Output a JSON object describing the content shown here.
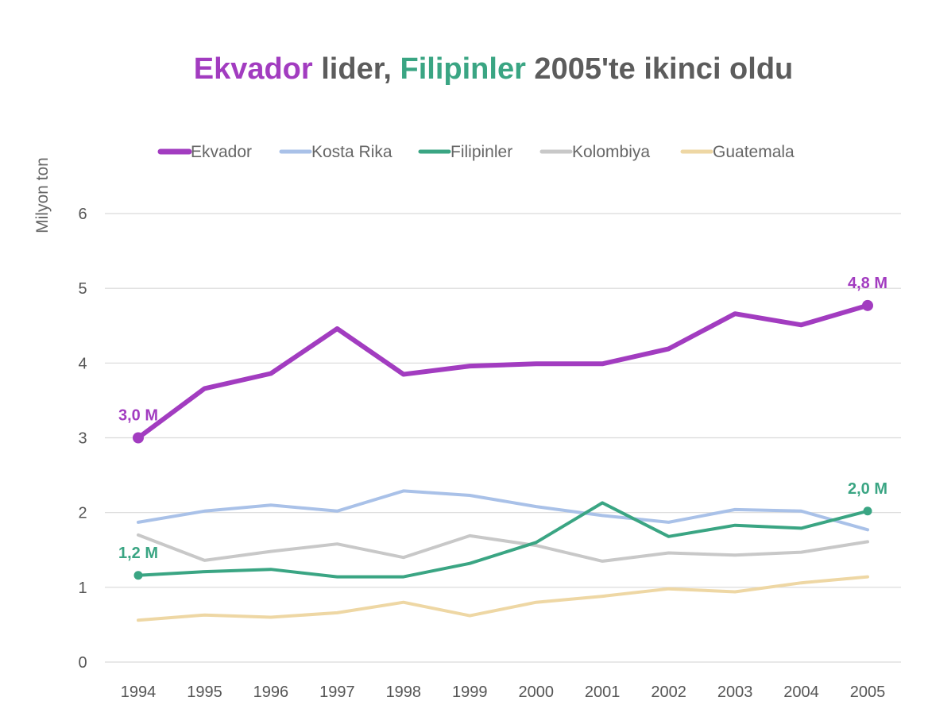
{
  "chart_data": {
    "type": "line",
    "title": {
      "parts": [
        {
          "text": "Ekvador",
          "color": "#a23cc0"
        },
        {
          "text": " lider, ",
          "color": "#5c5c5c"
        },
        {
          "text": "Filipinler",
          "color": "#3aa583"
        },
        {
          "text": " 2005'te ikinci oldu",
          "color": "#5c5c5c"
        }
      ]
    },
    "ylabel": "Milyon ton",
    "xlabel": "",
    "ylim": [
      0,
      6
    ],
    "yticks": [
      0,
      1,
      2,
      3,
      4,
      5,
      6
    ],
    "grid": true,
    "legend_position": "top",
    "x": [
      "1994",
      "1995",
      "1996",
      "1997",
      "1998",
      "1999",
      "2000",
      "2001",
      "2002",
      "2003",
      "2004",
      "2005"
    ],
    "series": [
      {
        "name": "Ekvador",
        "color": "#a23cc0",
        "emphasis": true,
        "values": [
          3.0,
          3.66,
          3.86,
          4.46,
          3.85,
          3.96,
          3.99,
          3.99,
          4.19,
          4.66,
          4.51,
          4.77
        ],
        "labels": [
          {
            "index": 0,
            "text": "3,0 M"
          },
          {
            "index": 11,
            "text": "4,8 M"
          }
        ]
      },
      {
        "name": "Kosta Rika",
        "color": "#a9c1e8",
        "emphasis": false,
        "values": [
          1.87,
          2.02,
          2.1,
          2.02,
          2.29,
          2.23,
          2.08,
          1.96,
          1.87,
          2.04,
          2.02,
          1.77
        ],
        "labels": []
      },
      {
        "name": "Filipinler",
        "color": "#3aa583",
        "emphasis": true,
        "values": [
          1.16,
          1.21,
          1.24,
          1.14,
          1.14,
          1.32,
          1.6,
          2.13,
          1.68,
          1.83,
          1.79,
          2.02
        ],
        "labels": [
          {
            "index": 0,
            "text": "1,2 M"
          },
          {
            "index": 11,
            "text": "2,0 M"
          }
        ]
      },
      {
        "name": "Kolombiya",
        "color": "#c8c8c8",
        "emphasis": false,
        "values": [
          1.7,
          1.36,
          1.48,
          1.58,
          1.4,
          1.69,
          1.56,
          1.35,
          1.46,
          1.43,
          1.47,
          1.61
        ],
        "labels": []
      },
      {
        "name": "Guatemala",
        "color": "#eed7a4",
        "emphasis": false,
        "values": [
          0.56,
          0.63,
          0.6,
          0.66,
          0.8,
          0.62,
          0.8,
          0.88,
          0.98,
          0.94,
          1.06,
          1.14
        ],
        "labels": []
      }
    ]
  }
}
